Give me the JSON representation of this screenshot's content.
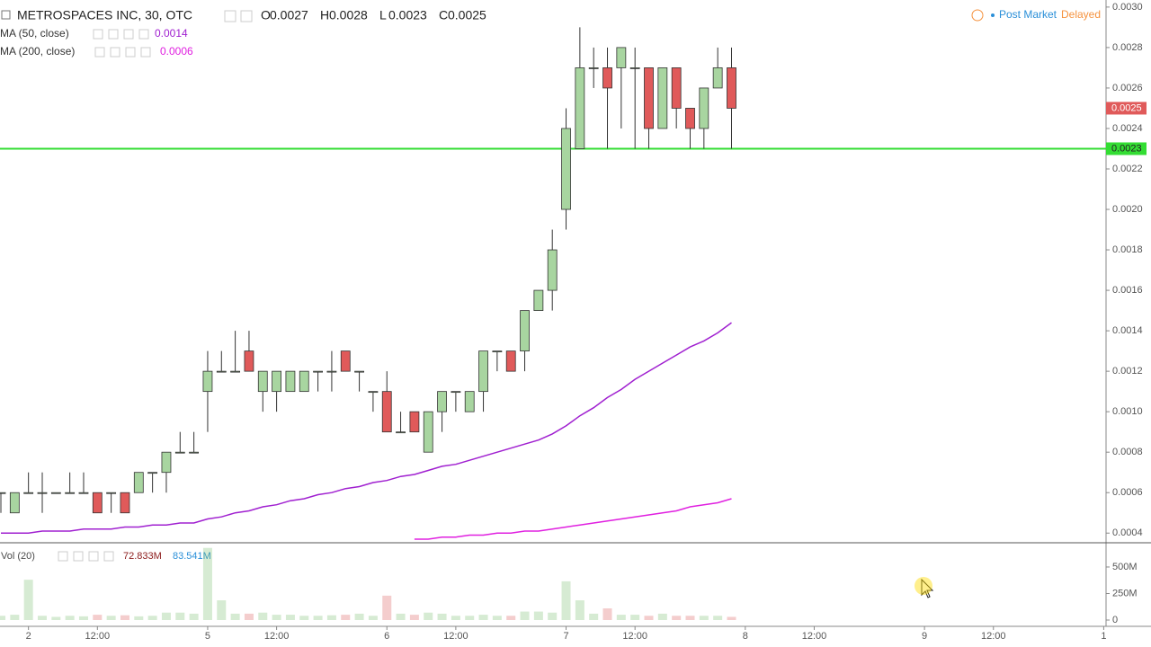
{
  "chart_data": {
    "type": "candlestick",
    "title": "METROSPACES INC, 30, OTC",
    "ohlc_legend": [
      {
        "label": "O",
        "value": 0.0027
      },
      {
        "label": "H",
        "value": 0.0028
      },
      {
        "label": "L",
        "value": 0.0023
      },
      {
        "label": "C",
        "value": 0.0025
      }
    ],
    "market_status": "Post Market",
    "data_status": "Delayed",
    "categories": [
      null,
      null,
      "2",
      null,
      null,
      null,
      null,
      "12:00",
      null,
      null,
      null,
      null,
      null,
      null,
      null,
      "5",
      null,
      null,
      null,
      null,
      "12:00",
      null,
      null,
      null,
      null,
      null,
      null,
      null,
      "6",
      null,
      null,
      null,
      null,
      "12:00",
      null,
      null,
      null,
      null,
      null,
      null,
      null,
      "7",
      null,
      null,
      null,
      null,
      "12:00",
      null,
      null,
      null,
      null,
      null,
      null,
      null,
      "8",
      null,
      null,
      null,
      null,
      "12:00",
      null,
      null,
      null,
      null,
      null,
      null,
      null,
      "9",
      null,
      null,
      null,
      null,
      "12:00",
      null,
      null,
      null,
      null,
      null,
      null,
      null,
      "1"
    ],
    "open": [
      0.0006,
      0.0005,
      0.0006,
      0.0006,
      0.0006,
      0.0006,
      0.0006,
      0.0006,
      0.0006,
      0.0006,
      0.0006,
      0.0007,
      0.0007,
      0.0008,
      0.0008,
      0.0011,
      0.0012,
      0.0012,
      0.0013,
      0.0011,
      0.0011,
      0.0011,
      0.0011,
      0.0012,
      0.0012,
      0.0013,
      0.0012,
      0.0011,
      0.0011,
      0.0009,
      0.001,
      0.0008,
      0.001,
      0.0011,
      0.001,
      0.0011,
      0.0013,
      0.0013,
      0.0013,
      0.0015,
      0.0016,
      0.002,
      0.0023,
      0.0027,
      0.0027,
      0.0027,
      0.0027,
      0.0027,
      0.0024,
      0.0027,
      0.0025,
      0.0024,
      0.0026,
      0.0027,
      null,
      null,
      null,
      null,
      null,
      null,
      null,
      null,
      null,
      null,
      null,
      null,
      null,
      null,
      null,
      null,
      null,
      null,
      null,
      null,
      null,
      null,
      null,
      null,
      null,
      null,
      null
    ],
    "high": [
      0.0006,
      0.0006,
      0.0007,
      0.0007,
      0.0006,
      0.0007,
      0.0007,
      0.0006,
      0.0006,
      0.0006,
      0.0007,
      0.0007,
      0.0008,
      0.0009,
      0.0009,
      0.0013,
      0.0013,
      0.0014,
      0.0014,
      0.0012,
      0.0012,
      0.0012,
      0.0012,
      0.0012,
      0.0013,
      0.0013,
      0.0012,
      0.0011,
      0.0012,
      0.001,
      0.001,
      0.001,
      0.0011,
      0.0011,
      0.0011,
      0.0013,
      0.0013,
      0.0013,
      0.0015,
      0.0016,
      0.0019,
      0.0025,
      0.0029,
      0.0028,
      0.0028,
      0.0028,
      0.0028,
      0.0027,
      0.0027,
      0.0027,
      0.0025,
      0.0026,
      0.0028,
      0.0028,
      null,
      null,
      null,
      null,
      null,
      null,
      null,
      null,
      null,
      null,
      null,
      null,
      null,
      null,
      null,
      null,
      null,
      null,
      null,
      null,
      null,
      null,
      null,
      null,
      null,
      null,
      null
    ],
    "low": [
      0.0005,
      0.0005,
      0.0006,
      0.0005,
      0.0006,
      0.0006,
      0.0006,
      0.0005,
      0.0005,
      0.0005,
      0.0006,
      0.0006,
      0.0006,
      0.0008,
      0.0008,
      0.0009,
      0.0012,
      0.0012,
      0.0012,
      0.001,
      0.001,
      0.0011,
      0.0011,
      0.0011,
      0.0011,
      0.0012,
      0.0011,
      0.001,
      0.0009,
      0.0009,
      0.0009,
      0.0008,
      0.0009,
      0.001,
      0.001,
      0.001,
      0.0012,
      0.0012,
      0.0012,
      0.0015,
      0.0015,
      0.0019,
      0.0023,
      0.0026,
      0.0023,
      0.0024,
      0.0023,
      0.0023,
      0.0024,
      0.0024,
      0.0023,
      0.0023,
      0.0026,
      0.0023,
      null,
      null,
      null,
      null,
      null,
      null,
      null,
      null,
      null,
      null,
      null,
      null,
      null,
      null,
      null,
      null,
      null,
      null,
      null,
      null,
      null,
      null,
      null,
      null,
      null,
      null,
      null
    ],
    "close": [
      0.0006,
      0.0006,
      0.0006,
      0.0006,
      0.0006,
      0.0006,
      0.0006,
      0.0005,
      0.0006,
      0.0005,
      0.0007,
      0.0007,
      0.0008,
      0.0008,
      0.0008,
      0.0012,
      0.0012,
      0.0012,
      0.0012,
      0.0012,
      0.0012,
      0.0012,
      0.0012,
      0.0012,
      0.0012,
      0.0012,
      0.0012,
      0.0011,
      0.0009,
      0.0009,
      0.0009,
      0.001,
      0.0011,
      0.0011,
      0.0011,
      0.0013,
      0.0013,
      0.0012,
      0.0015,
      0.0016,
      0.0018,
      0.0024,
      0.0027,
      0.0027,
      0.0026,
      0.0028,
      0.0027,
      0.0024,
      0.0027,
      0.0025,
      0.0024,
      0.0026,
      0.0027,
      0.0025,
      null,
      null,
      null,
      null,
      null,
      null,
      null,
      null,
      null,
      null,
      null,
      null,
      null,
      null,
      null,
      null,
      null,
      null,
      null,
      null,
      null,
      null,
      null,
      null,
      null,
      null,
      null
    ],
    "up_color": "#a8d5a0",
    "down_color": "#e05a5a",
    "wick_color": "#333333",
    "series": [
      {
        "name": "MA (50, close)",
        "color": "#a020d0",
        "last": 0.0014,
        "values": [
          0.0004,
          0.0004,
          0.0004,
          0.00041,
          0.00041,
          0.00041,
          0.00042,
          0.00042,
          0.00042,
          0.00043,
          0.00043,
          0.00044,
          0.00044,
          0.00045,
          0.00045,
          0.00047,
          0.00048,
          0.0005,
          0.00051,
          0.00053,
          0.00054,
          0.00056,
          0.00057,
          0.00059,
          0.0006,
          0.00062,
          0.00063,
          0.00065,
          0.00066,
          0.00068,
          0.00069,
          0.00071,
          0.00073,
          0.00074,
          0.00076,
          0.00078,
          0.0008,
          0.00082,
          0.00084,
          0.00086,
          0.00089,
          0.00093,
          0.00098,
          0.00102,
          0.00107,
          0.00111,
          0.00116,
          0.0012,
          0.00124,
          0.00128,
          0.00132,
          0.00135,
          0.00139,
          0.00144,
          null,
          null,
          null,
          null,
          null,
          null,
          null,
          null,
          null,
          null,
          null,
          null,
          null,
          null,
          null,
          null,
          null,
          null,
          null,
          null,
          null,
          null,
          null,
          null,
          null,
          null,
          null
        ]
      },
      {
        "name": "MA (200, close)",
        "color": "#e020e0",
        "last": 0.0006,
        "values": [
          null,
          null,
          null,
          null,
          null,
          null,
          null,
          null,
          null,
          null,
          null,
          null,
          null,
          null,
          null,
          null,
          null,
          null,
          null,
          null,
          null,
          null,
          null,
          null,
          null,
          null,
          null,
          null,
          null,
          null,
          0.00037,
          0.00037,
          0.00038,
          0.00038,
          0.00039,
          0.00039,
          0.0004,
          0.0004,
          0.00041,
          0.00041,
          0.00042,
          0.00043,
          0.00044,
          0.00045,
          0.00046,
          0.00047,
          0.00048,
          0.00049,
          0.0005,
          0.00051,
          0.00053,
          0.00054,
          0.00055,
          0.00057,
          null,
          null,
          null,
          null,
          null,
          null,
          null,
          null,
          null,
          null,
          null,
          null,
          null,
          null,
          null,
          null,
          null,
          null,
          null,
          null,
          null,
          null,
          null,
          null,
          null,
          null,
          null
        ]
      }
    ],
    "price_lines": [
      {
        "value": 0.0025,
        "color": "#e05a5a",
        "line": false
      },
      {
        "value": 0.0023,
        "color": "#33dd33",
        "line": true
      }
    ],
    "ylim": [
      0.00037,
      0.003035
    ],
    "yticks": [
      0.0004,
      0.0006,
      0.0008,
      {
        "value": 0.001,
        "label": "0.0010"
      },
      0.0012,
      0.0014,
      0.0016,
      0.0018,
      {
        "value": 0.002,
        "label": "0.0020"
      },
      0.0022,
      0.0024,
      0.0026,
      0.0028,
      {
        "value": 0.003,
        "label": "0.0030"
      }
    ],
    "volume": {
      "name": "Vol (20)",
      "legend_values": [
        {
          "label": "72.833M",
          "color": "#8b1a1a"
        },
        {
          "label": "83.541M",
          "color": "#2a8fd8"
        }
      ],
      "values": [
        40,
        50,
        380,
        40,
        30,
        40,
        35,
        50,
        40,
        45,
        35,
        40,
        70,
        70,
        60,
        680,
        186,
        60,
        60,
        70,
        50,
        50,
        40,
        40,
        45,
        50,
        60,
        40,
        230,
        60,
        50,
        70,
        60,
        40,
        40,
        50,
        40,
        40,
        80,
        80,
        70,
        365,
        186,
        60,
        110,
        50,
        50,
        40,
        60,
        40,
        40,
        40,
        40,
        30,
        null,
        null,
        null,
        null,
        null,
        null,
        null,
        null,
        null,
        null,
        null,
        null,
        null,
        null,
        null,
        null,
        null,
        null,
        null,
        null,
        null,
        null,
        null,
        null,
        null,
        null,
        null
      ],
      "ylim": [
        0,
        720
      ],
      "yticks": [
        {
          "value": 0,
          "label": "0"
        },
        {
          "value": 250,
          "label": "250M"
        },
        {
          "value": 500,
          "label": "500M"
        }
      ]
    }
  }
}
